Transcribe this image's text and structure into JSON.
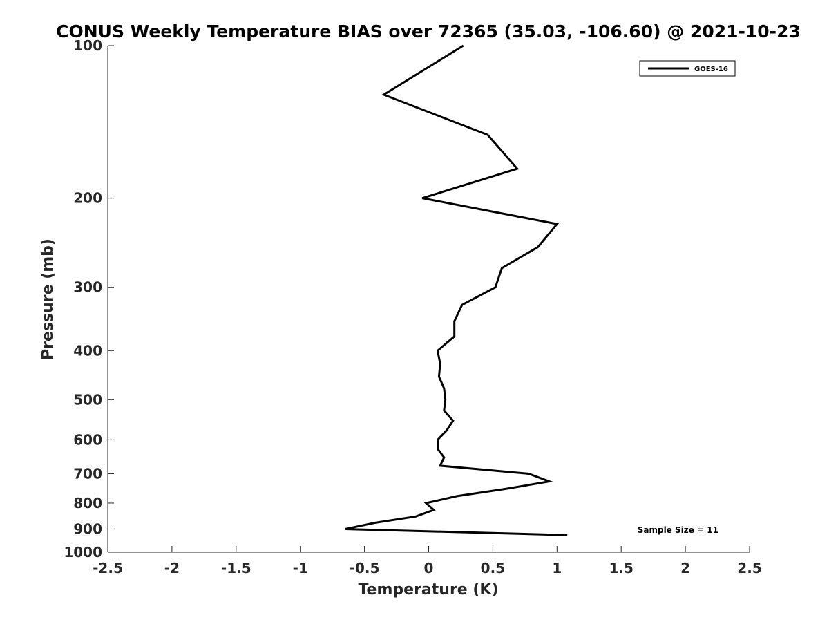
{
  "chart_data": {
    "type": "line",
    "title": "CONUS Weekly Temperature BIAS over 72365 (35.03, -106.60) @ 2021-10-23",
    "xlabel": "Temperature (K)",
    "ylabel": "Pressure (mb)",
    "xlim": [
      -2.5,
      2.5
    ],
    "ylim": [
      100,
      1000
    ],
    "y_scale": "log",
    "y_reversed": true,
    "x_ticks": [
      -2.5,
      -2,
      -1.5,
      -1,
      -0.5,
      0,
      0.5,
      1,
      1.5,
      2,
      2.5
    ],
    "x_tick_labels": [
      "-2.5",
      "-2",
      "-1.5",
      "-1",
      "-0.5",
      "0",
      "0.5",
      "1",
      "1.5",
      "2",
      "2.5"
    ],
    "y_ticks": [
      100,
      200,
      300,
      400,
      500,
      600,
      700,
      800,
      900,
      1000
    ],
    "y_tick_labels": [
      "100",
      "200",
      "300",
      "400",
      "500",
      "600",
      "700",
      "800",
      "900",
      "1000"
    ],
    "grid": false,
    "legend_position": "top-right",
    "series": [
      {
        "name": "GOES-16",
        "color": "#000000",
        "points": [
          {
            "x": 0.27,
            "p": 100
          },
          {
            "x": -0.35,
            "p": 125
          },
          {
            "x": 0.46,
            "p": 150
          },
          {
            "x": 0.69,
            "p": 175
          },
          {
            "x": -0.05,
            "p": 200
          },
          {
            "x": 1.0,
            "p": 225
          },
          {
            "x": 0.85,
            "p": 250
          },
          {
            "x": 0.57,
            "p": 275
          },
          {
            "x": 0.52,
            "p": 300
          },
          {
            "x": 0.26,
            "p": 325
          },
          {
            "x": 0.2,
            "p": 350
          },
          {
            "x": 0.2,
            "p": 375
          },
          {
            "x": 0.07,
            "p": 400
          },
          {
            "x": 0.09,
            "p": 425
          },
          {
            "x": 0.08,
            "p": 450
          },
          {
            "x": 0.12,
            "p": 475
          },
          {
            "x": 0.13,
            "p": 500
          },
          {
            "x": 0.12,
            "p": 525
          },
          {
            "x": 0.19,
            "p": 550
          },
          {
            "x": 0.14,
            "p": 575
          },
          {
            "x": 0.07,
            "p": 600
          },
          {
            "x": 0.07,
            "p": 625
          },
          {
            "x": 0.12,
            "p": 650
          },
          {
            "x": 0.09,
            "p": 675
          },
          {
            "x": 0.78,
            "p": 700
          },
          {
            "x": 0.94,
            "p": 725
          },
          {
            "x": 0.6,
            "p": 750
          },
          {
            "x": 0.22,
            "p": 775
          },
          {
            "x": -0.02,
            "p": 800
          },
          {
            "x": 0.04,
            "p": 825
          },
          {
            "x": -0.1,
            "p": 850
          },
          {
            "x": -0.42,
            "p": 875
          },
          {
            "x": -0.65,
            "p": 900
          },
          {
            "x": 1.08,
            "p": 925
          }
        ]
      }
    ],
    "annotation": "Sample Size = 11"
  }
}
